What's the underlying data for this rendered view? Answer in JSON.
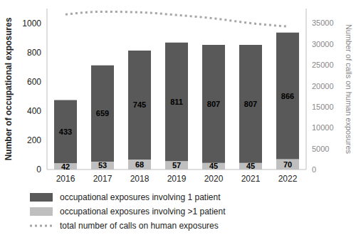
{
  "chart_data": {
    "type": "bar",
    "stacked": true,
    "categories": [
      "2016",
      "2017",
      "2018",
      "2019",
      "2020",
      "2021",
      "2022"
    ],
    "ylabel": "Number of occupational exposures",
    "y2label": "Number of calls on human exposures",
    "ylim": [
      0,
      1100
    ],
    "yticks": [
      0,
      200,
      400,
      600,
      800,
      1000
    ],
    "y2lim": [
      0,
      38500
    ],
    "y2ticks": [
      0,
      5000,
      10000,
      15000,
      20000,
      25000,
      30000,
      35000
    ],
    "legend": "bottom",
    "series": [
      {
        "name": "occupational exposures involving 1 patient",
        "type": "bar",
        "color": "#595959",
        "data_labels": true,
        "values": [
          433,
          659,
          745,
          811,
          807,
          807,
          866
        ]
      },
      {
        "name": "occupational exposures involving >1 patient",
        "type": "bar",
        "color": "#bfbfbf",
        "data_labels": true,
        "values": [
          42,
          53,
          68,
          57,
          45,
          45,
          70
        ]
      },
      {
        "name": "total number of calls on human exposures",
        "type": "line",
        "axis": "y2",
        "line_style": "dotted",
        "color": "#a6a6a6",
        "values": [
          37100,
          37750,
          37600,
          36950,
          36150,
          35000,
          34200
        ]
      }
    ]
  }
}
